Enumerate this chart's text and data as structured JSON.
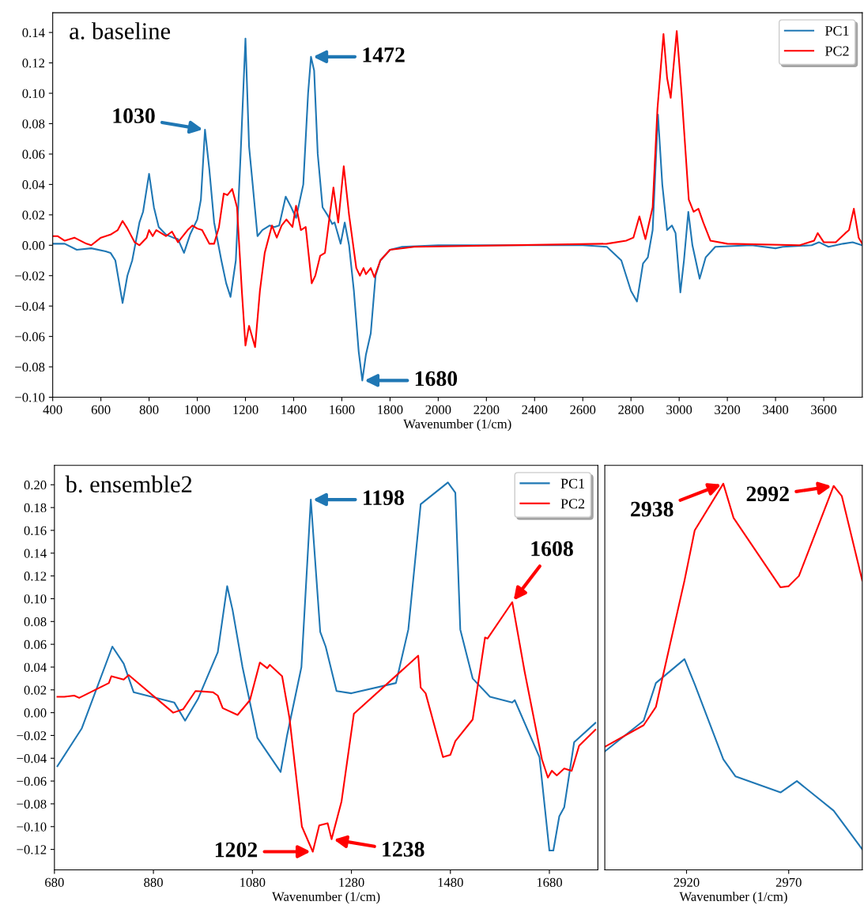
{
  "chart_data": [
    {
      "type": "line",
      "title": "a. baseline",
      "xlabel": "Wavenumber (1/cm)",
      "xlim": [
        400,
        3760
      ],
      "ylim": [
        -0.1,
        0.153
      ],
      "xticks": [
        400,
        600,
        800,
        1000,
        1200,
        1400,
        1600,
        1800,
        2000,
        2200,
        2400,
        2600,
        2800,
        3000,
        3200,
        3400,
        3600
      ],
      "yticks": [
        {
          "value": -0.1,
          "label": "−0.10"
        },
        {
          "value": -0.08,
          "label": "−0.08"
        },
        {
          "value": -0.06,
          "label": "−0.06"
        },
        {
          "value": -0.04,
          "label": "−0.04"
        },
        {
          "value": -0.02,
          "label": "−0.02"
        },
        {
          "value": 0,
          "label": "0.00"
        },
        {
          "value": 0.02,
          "label": "0.02"
        },
        {
          "value": 0.04,
          "label": "0.04"
        },
        {
          "value": 0.06,
          "label": "0.06"
        },
        {
          "value": 0.08,
          "label": "0.08"
        },
        {
          "value": 0.1,
          "label": "0.10"
        },
        {
          "value": 0.12,
          "label": "0.12"
        },
        {
          "value": 0.14,
          "label": "0.14"
        }
      ],
      "legend": "top right",
      "series": [
        {
          "name": "PC1",
          "color": "#1f77b4",
          "x": [
            400,
            450,
            500,
            560,
            620,
            640,
            660,
            690,
            710,
            730,
            760,
            775,
            800,
            820,
            840,
            870,
            900,
            920,
            945,
            970,
            1000,
            1015,
            1032,
            1050,
            1070,
            1100,
            1120,
            1138,
            1160,
            1180,
            1200,
            1215,
            1230,
            1250,
            1270,
            1300,
            1320,
            1340,
            1367,
            1390,
            1410,
            1440,
            1460,
            1472,
            1485,
            1500,
            1520,
            1540,
            1560,
            1570,
            1595,
            1612,
            1630,
            1650,
            1670,
            1685,
            1700,
            1720,
            1740,
            1760,
            1800,
            1850,
            2000,
            2600,
            2700,
            2760,
            2800,
            2825,
            2850,
            2870,
            2890,
            2912,
            2930,
            2950,
            2970,
            2985,
            3005,
            3020,
            3038,
            3055,
            3085,
            3110,
            3150,
            3300,
            3400,
            3430,
            3550,
            3580,
            3620,
            3680,
            3720,
            3760
          ],
          "values": [
            0.001,
            0.001,
            -0.003,
            -0.002,
            -0.004,
            -0.005,
            -0.01,
            -0.038,
            -0.02,
            -0.01,
            0.015,
            0.022,
            0.047,
            0.025,
            0.012,
            0.007,
            0.005,
            0.004,
            -0.005,
            0.007,
            0.017,
            0.03,
            0.076,
            0.05,
            0.015,
            -0.01,
            -0.025,
            -0.034,
            -0.01,
            0.06,
            0.136,
            0.065,
            0.04,
            0.006,
            0.01,
            0.013,
            0.012,
            0.013,
            0.032,
            0.025,
            0.018,
            0.04,
            0.1,
            0.124,
            0.115,
            0.06,
            0.025,
            0.02,
            0.014,
            0.015,
            0.001,
            0.015,
            0.0,
            -0.03,
            -0.07,
            -0.089,
            -0.072,
            -0.058,
            -0.02,
            -0.01,
            -0.003,
            -0.001,
            0.0,
            0.0,
            -0.001,
            -0.01,
            -0.03,
            -0.037,
            -0.012,
            -0.008,
            0.01,
            0.086,
            0.04,
            0.01,
            0.013,
            0.008,
            -0.031,
            -0.01,
            0.022,
            0.0,
            -0.022,
            -0.008,
            -0.001,
            0.0,
            -0.002,
            -0.001,
            0.0,
            0.002,
            -0.001,
            0.001,
            0.002,
            0.0
          ]
        },
        {
          "name": "PC2",
          "color": "#ff0000",
          "x": [
            400,
            420,
            450,
            490,
            540,
            560,
            600,
            640,
            670,
            690,
            710,
            740,
            760,
            790,
            800,
            815,
            830,
            870,
            895,
            920,
            960,
            980,
            1000,
            1020,
            1050,
            1070,
            1090,
            1110,
            1125,
            1145,
            1165,
            1185,
            1200,
            1215,
            1240,
            1260,
            1280,
            1310,
            1330,
            1350,
            1370,
            1395,
            1410,
            1430,
            1450,
            1475,
            1490,
            1510,
            1530,
            1550,
            1565,
            1585,
            1608,
            1630,
            1660,
            1675,
            1690,
            1700,
            1720,
            1735,
            1760,
            1800,
            1900,
            2700,
            2780,
            2810,
            2835,
            2860,
            2890,
            2910,
            2935,
            2950,
            2965,
            2990,
            3010,
            3040,
            3060,
            3080,
            3100,
            3130,
            3200,
            3500,
            3560,
            3575,
            3600,
            3650,
            3690,
            3705,
            3725,
            3745,
            3760
          ],
          "values": [
            0.006,
            0.006,
            0.003,
            0.005,
            0.001,
            0.0,
            0.005,
            0.007,
            0.01,
            0.016,
            0.011,
            0.002,
            0.0,
            0.005,
            0.01,
            0.006,
            0.01,
            0.006,
            0.009,
            0.002,
            0.01,
            0.013,
            0.011,
            0.01,
            0.001,
            0.001,
            0.012,
            0.034,
            0.033,
            0.037,
            0.025,
            -0.03,
            -0.066,
            -0.053,
            -0.067,
            -0.03,
            -0.005,
            0.013,
            0.005,
            0.013,
            0.017,
            0.012,
            0.026,
            0.01,
            0.012,
            -0.025,
            -0.02,
            -0.007,
            -0.005,
            0.02,
            0.038,
            0.015,
            0.052,
            0.02,
            -0.015,
            -0.02,
            -0.015,
            -0.019,
            -0.015,
            -0.021,
            -0.01,
            -0.003,
            -0.001,
            0.001,
            0.003,
            0.005,
            0.019,
            0.004,
            0.025,
            0.09,
            0.139,
            0.11,
            0.097,
            0.141,
            0.1,
            0.03,
            0.022,
            0.024,
            0.015,
            0.003,
            0.001,
            0.0,
            0.003,
            0.008,
            0.002,
            0.002,
            0.008,
            0.01,
            0.024,
            0.005,
            0.001
          ]
        }
      ],
      "annotations": [
        {
          "text": "1030",
          "x": 1032,
          "y": 0.076
        },
        {
          "text": "1472",
          "x": 1472,
          "y": 0.124
        },
        {
          "text": "1680",
          "x": 1685,
          "y": -0.089
        }
      ]
    },
    {
      "type": "line",
      "title": "b. ensemble2",
      "xlabel": "Wavenumber (1/cm)",
      "xlim": [
        680,
        1778
      ],
      "ylim": [
        -0.138,
        0.217
      ],
      "xticks": [
        680,
        880,
        1080,
        1280,
        1480,
        1680
      ],
      "yticks": [
        {
          "value": -0.12,
          "label": "−0.12"
        },
        {
          "value": -0.1,
          "label": "−0.10"
        },
        {
          "value": -0.08,
          "label": "−0.08"
        },
        {
          "value": -0.06,
          "label": "−0.06"
        },
        {
          "value": -0.04,
          "label": "−0.04"
        },
        {
          "value": -0.02,
          "label": "−0.02"
        },
        {
          "value": 0,
          "label": "0.00"
        },
        {
          "value": 0.02,
          "label": "0.02"
        },
        {
          "value": 0.04,
          "label": "0.04"
        },
        {
          "value": 0.06,
          "label": "0.06"
        },
        {
          "value": 0.08,
          "label": "0.08"
        },
        {
          "value": 0.1,
          "label": "0.10"
        },
        {
          "value": 0.12,
          "label": "0.12"
        },
        {
          "value": 0.14,
          "label": "0.14"
        },
        {
          "value": 0.16,
          "label": "0.16"
        },
        {
          "value": 0.18,
          "label": "0.18"
        },
        {
          "value": 0.2,
          "label": "0.20"
        }
      ],
      "legend": "top right",
      "series": [
        {
          "name": "PC1",
          "color": "#1f77b4",
          "x": [
            686,
            726,
            735,
            797,
            820,
            840,
            922,
            944,
            970,
            1010,
            1029,
            1040,
            1060,
            1090,
            1137,
            1150,
            1179,
            1198,
            1217,
            1228,
            1250,
            1280,
            1370,
            1395,
            1420,
            1475,
            1490,
            1500,
            1525,
            1560,
            1605,
            1610,
            1660,
            1680,
            1688,
            1700,
            1710,
            1730,
            1773
          ],
          "values": [
            -0.047,
            -0.02,
            -0.014,
            0.058,
            0.043,
            0.018,
            0.009,
            -0.007,
            0.012,
            0.053,
            0.111,
            0.09,
            0.04,
            -0.022,
            -0.052,
            -0.02,
            0.04,
            0.187,
            0.071,
            0.058,
            0.019,
            0.017,
            0.026,
            0.073,
            0.183,
            0.202,
            0.193,
            0.073,
            0.03,
            0.014,
            0.009,
            0.011,
            -0.039,
            -0.121,
            -0.121,
            -0.091,
            -0.083,
            -0.026,
            -0.009
          ]
        },
        {
          "name": "PC2",
          "color": "#ff0000",
          "x": [
            686,
            700,
            720,
            730,
            790,
            795,
            820,
            830,
            920,
            940,
            965,
            1000,
            1010,
            1020,
            1050,
            1075,
            1095,
            1110,
            1115,
            1140,
            1155,
            1180,
            1202,
            1215,
            1232,
            1240,
            1260,
            1285,
            1415,
            1420,
            1430,
            1465,
            1480,
            1490,
            1525,
            1550,
            1555,
            1605,
            1630,
            1665,
            1677,
            1685,
            1695,
            1710,
            1725,
            1740,
            1773
          ],
          "values": [
            0.014,
            0.014,
            0.015,
            0.013,
            0.026,
            0.032,
            0.029,
            0.033,
            0.0,
            0.003,
            0.019,
            0.018,
            0.015,
            0.004,
            -0.002,
            0.011,
            0.044,
            0.039,
            0.042,
            0.032,
            -0.005,
            -0.1,
            -0.122,
            -0.099,
            -0.097,
            -0.111,
            -0.078,
            -0.001,
            0.05,
            0.022,
            0.017,
            -0.039,
            -0.037,
            -0.025,
            -0.006,
            0.066,
            0.065,
            0.097,
            0.036,
            -0.041,
            -0.057,
            -0.051,
            -0.055,
            -0.049,
            -0.051,
            -0.029,
            -0.015
          ]
        }
      ],
      "annotations": [
        {
          "text": "1198",
          "x": 1198,
          "y": 0.187
        },
        {
          "text": "1202",
          "x": 1202,
          "y": -0.122
        },
        {
          "text": "1238",
          "x": 1240,
          "y": -0.111
        },
        {
          "text": "1608",
          "x": 1605,
          "y": 0.097
        }
      ]
    },
    {
      "type": "line",
      "xlabel": "Wavenumber (1/cm)",
      "xlim": [
        2880,
        3006
      ],
      "ylim": [
        -0.138,
        0.217
      ],
      "xticks": [
        2920,
        2970
      ],
      "tick_labels": "x",
      "series": [
        {
          "color": "#1f77b4",
          "x": [
            2880,
            2899,
            2905,
            2919,
            2924,
            2938,
            2944,
            2966,
            2974,
            2992,
            3006
          ],
          "values": [
            -0.034,
            -0.007,
            0.026,
            0.047,
            0.025,
            -0.041,
            -0.056,
            -0.07,
            -0.06,
            -0.086,
            -0.12
          ]
        },
        {
          "color": "#ff0000",
          "x": [
            2880,
            2899,
            2905,
            2919,
            2924,
            2938,
            2943,
            2966,
            2970,
            2975,
            2992,
            2996,
            3006
          ],
          "values": [
            -0.03,
            -0.011,
            0.005,
            0.116,
            0.16,
            0.201,
            0.171,
            0.11,
            0.111,
            0.12,
            0.199,
            0.19,
            0.116
          ]
        }
      ],
      "annotations": [
        {
          "text": "2938",
          "x": 2938,
          "y": 0.201
        },
        {
          "text": "2992",
          "x": 2992,
          "y": 0.199
        }
      ]
    }
  ]
}
